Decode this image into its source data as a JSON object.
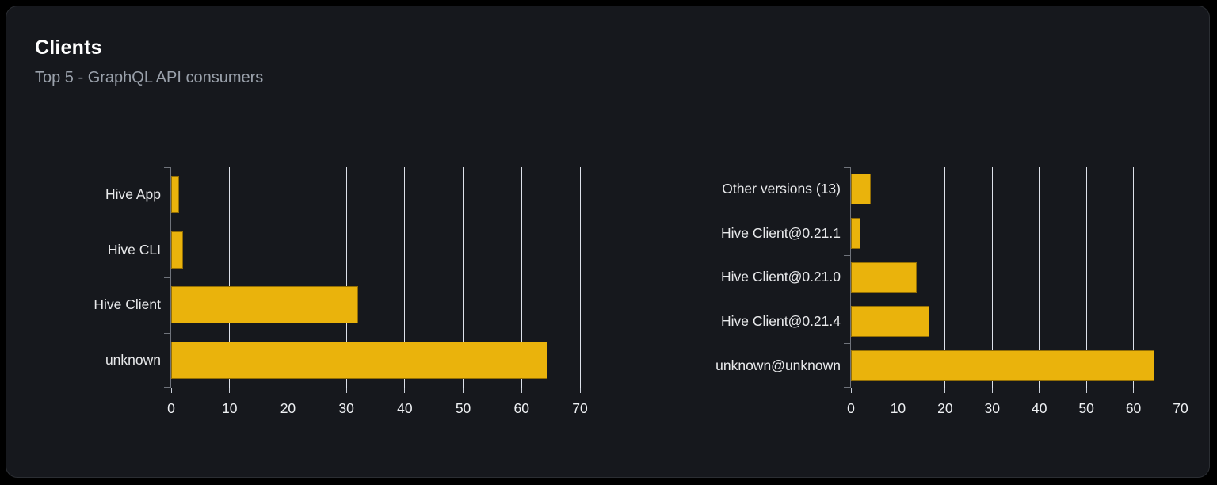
{
  "card": {
    "title": "Clients",
    "subtitle": "Top 5 - GraphQL API consumers"
  },
  "colors": {
    "bar": "#eab30c",
    "card_background": "#16181d",
    "page_background": "#000000",
    "gridline": "#dde1ea",
    "axis": "#6f737b",
    "text": "#e9eaec",
    "subtitle_text": "#9aa1ab"
  },
  "chart_data": [
    {
      "type": "bar",
      "orientation": "horizontal",
      "title": "",
      "categories": [
        "Hive App",
        "Hive CLI",
        "Hive Client",
        "unknown"
      ],
      "values": [
        1.4,
        2,
        32,
        64.5
      ],
      "xlabel": "",
      "ylabel": "",
      "xlim": [
        0,
        70
      ],
      "xticks": [
        0,
        10,
        20,
        30,
        40,
        50,
        60,
        70
      ],
      "grid": true,
      "legend": false
    },
    {
      "type": "bar",
      "orientation": "horizontal",
      "title": "",
      "categories": [
        "Other versions (13)",
        "Hive Client@0.21.1",
        "Hive Client@0.21.0",
        "Hive Client@0.21.4",
        "unknown@unknown"
      ],
      "values": [
        4.2,
        2,
        14,
        16.7,
        64.5
      ],
      "xlabel": "",
      "ylabel": "",
      "xlim": [
        0,
        70
      ],
      "xticks": [
        0,
        10,
        20,
        30,
        40,
        50,
        60,
        70
      ],
      "grid": true,
      "legend": false
    }
  ]
}
